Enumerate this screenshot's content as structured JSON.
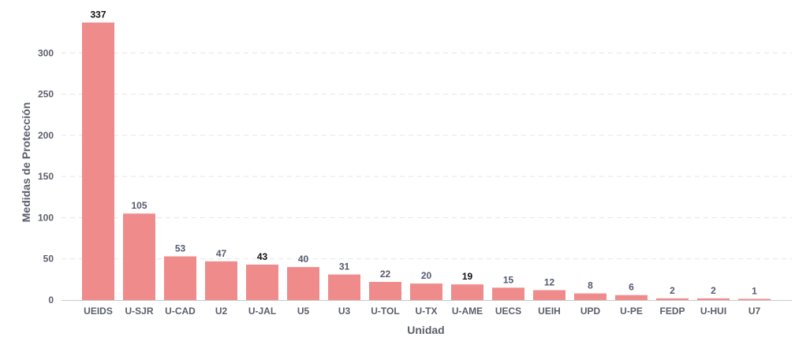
{
  "chart_data": {
    "type": "bar",
    "categories": [
      "UEIDS",
      "U-SJR",
      "U-CAD",
      "U2",
      "U-JAL",
      "U5",
      "U3",
      "U-TOL",
      "U-TX",
      "U-AME",
      "UECS",
      "UEIH",
      "UPD",
      "U-PE",
      "FEDP",
      "U-HUI",
      "U7"
    ],
    "values": [
      337,
      105,
      53,
      47,
      43,
      40,
      31,
      22,
      20,
      19,
      15,
      12,
      8,
      6,
      2,
      2,
      1
    ],
    "value_labels": [
      "337",
      "105",
      "53",
      "47",
      "43",
      "40",
      "31",
      "22",
      "20",
      "19",
      "15",
      "12",
      "8",
      "6",
      "2",
      "2",
      "1"
    ],
    "title": "",
    "xlabel": "Unidad",
    "ylabel": "Medidas de Protección",
    "ylim": [
      0,
      350
    ],
    "yticks": [
      0,
      50,
      100,
      150,
      200,
      250,
      300
    ],
    "ytick_labels": [
      "0",
      "50",
      "100",
      "150",
      "200",
      "250",
      "300"
    ],
    "grid": true,
    "legend": false,
    "colors": {
      "bar": "#f08b8b",
      "grid": "#e6e6e6",
      "text": "#5b5f6b"
    }
  }
}
